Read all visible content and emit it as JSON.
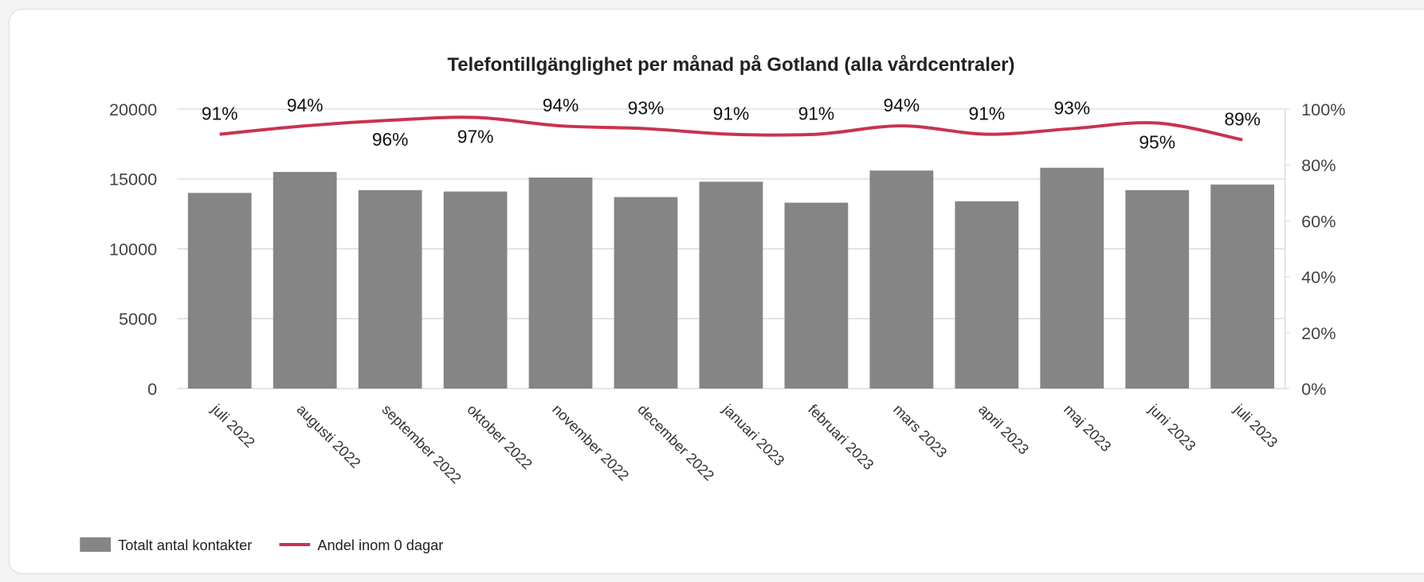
{
  "chart_data": {
    "type": "bar-line",
    "title": "Telefontillgänglighet per månad på Gotland (alla vårdcentraler)",
    "categories": [
      "juli 2022",
      "augusti 2022",
      "september 2022",
      "oktober 2022",
      "november 2022",
      "december 2022",
      "januari 2023",
      "februari 2023",
      "mars 2023",
      "april 2023",
      "maj 2023",
      "juni 2023",
      "juli 2023"
    ],
    "series": [
      {
        "name": "Totalt antal kontakter",
        "type": "bar",
        "color": "#858585",
        "values": [
          14000,
          15500,
          14200,
          14100,
          15100,
          13700,
          14800,
          13300,
          15600,
          13400,
          15800,
          14200,
          14600
        ]
      },
      {
        "name": "Andel inom 0 dagar",
        "type": "line",
        "axis": "y2",
        "color": "#c8334f",
        "values": [
          91,
          94,
          96,
          97,
          94,
          93,
          91,
          91,
          94,
          91,
          93,
          95,
          89
        ],
        "value_labels": [
          "91%",
          "94%",
          "96%",
          "97%",
          "94%",
          "93%",
          "91%",
          "91%",
          "94%",
          "91%",
          "93%",
          "95%",
          "89%"
        ]
      }
    ],
    "ylim": [
      0,
      20000
    ],
    "yticks": [
      0,
      5000,
      10000,
      15000,
      20000
    ],
    "y2lim": [
      0,
      100
    ],
    "y2ticks": [
      {
        "value": 0,
        "label": "0%"
      },
      {
        "value": 20,
        "label": "20%"
      },
      {
        "value": 40,
        "label": "40%"
      },
      {
        "value": 60,
        "label": "60%"
      },
      {
        "value": 80,
        "label": "80%"
      },
      {
        "value": 100,
        "label": "100%"
      }
    ],
    "grid": true,
    "legend": "bottom-left"
  }
}
